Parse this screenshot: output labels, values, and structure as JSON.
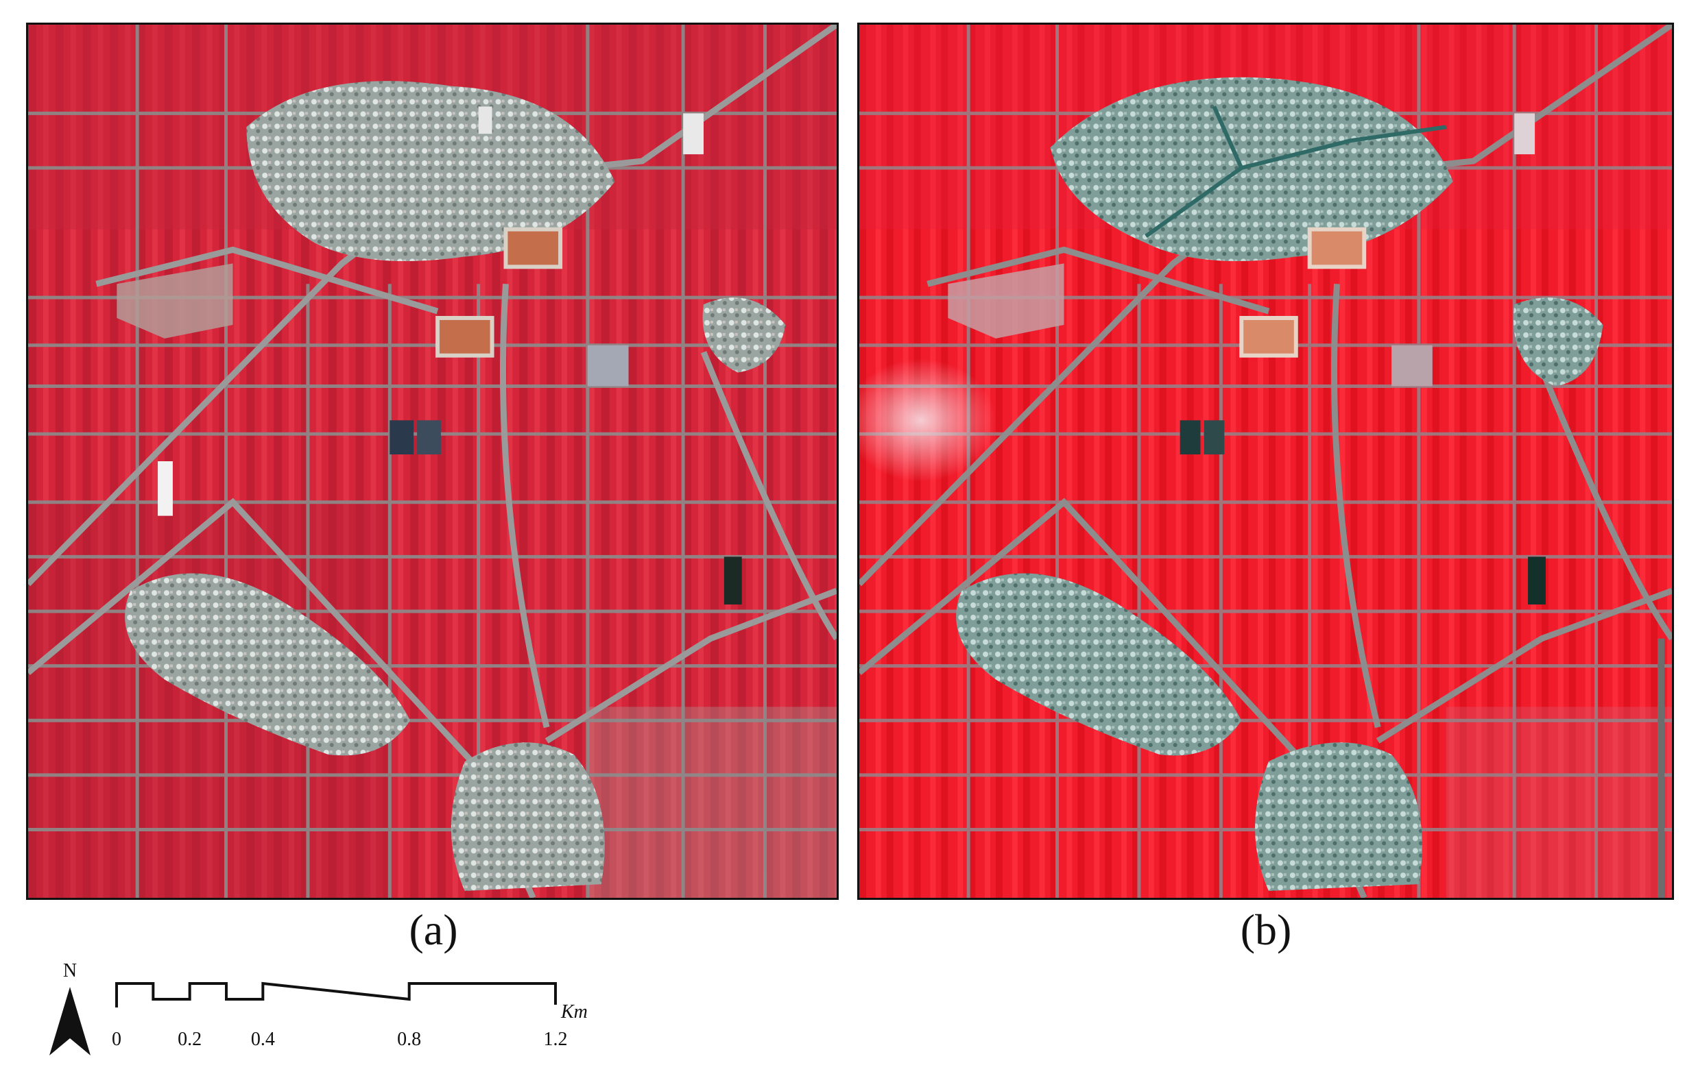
{
  "panels": [
    {
      "id": "a",
      "caption": "(a)",
      "base_color": "#d8273c"
    },
    {
      "id": "b",
      "caption": "(b)",
      "base_color": "#ee1c2b"
    }
  ],
  "north_arrow": {
    "label": "N",
    "icon": "north-arrow-icon"
  },
  "scale_bar": {
    "ticks": [
      "0",
      "0.2",
      "0.4",
      "0.8",
      "1.2"
    ],
    "tick_values": [
      0,
      0.2,
      0.4,
      0.8,
      1.2
    ],
    "unit": "Km"
  },
  "colors": {
    "vegetation": "#e0203a",
    "settlement": "#a9b7b3",
    "road": "#8f8f8f",
    "border": "#111111"
  }
}
